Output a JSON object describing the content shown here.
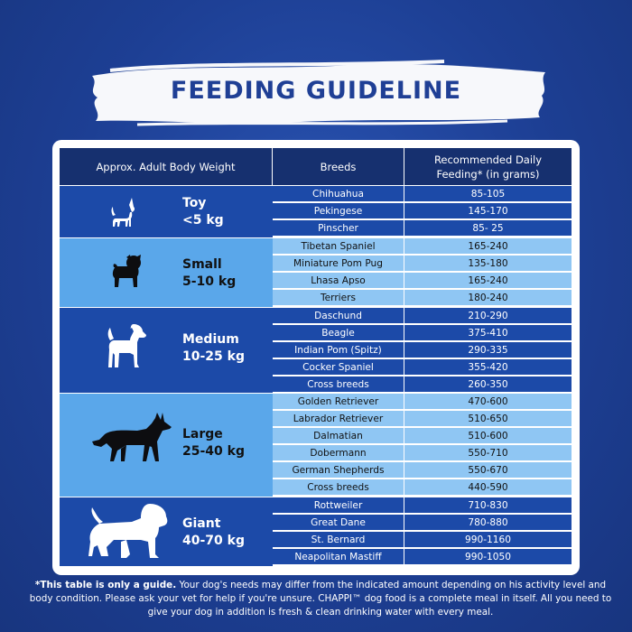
{
  "title": "FEEDING GUIDELINE",
  "table": {
    "headers": {
      "weight": "Approx. Adult Body Weight",
      "breeds": "Breeds",
      "feeding_line1": "Recommended Daily",
      "feeding_line2": "Feeding* (in grams)"
    },
    "groups": [
      {
        "name": "Toy",
        "weight": "<5 kg",
        "icon": "chihuahua-icon",
        "rows": [
          {
            "breed": "Chihuahua",
            "feeding": "85-105"
          },
          {
            "breed": "Pekingese",
            "feeding": "145-170"
          },
          {
            "breed": "Pinscher",
            "feeding": "85- 25"
          }
        ]
      },
      {
        "name": "Small",
        "weight": "5-10 kg",
        "icon": "pug-icon",
        "rows": [
          {
            "breed": "Tibetan Spaniel",
            "feeding": "165-240"
          },
          {
            "breed": "Miniature Pom Pug",
            "feeding": "135-180"
          },
          {
            "breed": "Lhasa Apso",
            "feeding": "165-240"
          },
          {
            "breed": "Terriers",
            "feeding": "180-240"
          }
        ]
      },
      {
        "name": "Medium",
        "weight": "10-25 kg",
        "icon": "beagle-icon",
        "rows": [
          {
            "breed": "Daschund",
            "feeding": "210-290"
          },
          {
            "breed": "Beagle",
            "feeding": "375-410"
          },
          {
            "breed": "Indian Pom (Spitz)",
            "feeding": "290-335"
          },
          {
            "breed": "Cocker Spaniel",
            "feeding": "355-420"
          },
          {
            "breed": "Cross breeds",
            "feeding": "260-350"
          }
        ]
      },
      {
        "name": "Large",
        "weight": "25-40 kg",
        "icon": "german-shepherd-icon",
        "rows": [
          {
            "breed": "Golden Retriever",
            "feeding": "470-600"
          },
          {
            "breed": "Labrador Retriever",
            "feeding": "510-650"
          },
          {
            "breed": "Dalmatian",
            "feeding": "510-600"
          },
          {
            "breed": "Dobermann",
            "feeding": "550-710"
          },
          {
            "breed": "German Shepherds",
            "feeding": "550-670"
          },
          {
            "breed": "Cross breeds",
            "feeding": "440-590"
          }
        ]
      },
      {
        "name": "Giant",
        "weight": "40-70 kg",
        "icon": "saint-bernard-icon",
        "rows": [
          {
            "breed": "Rottweiler",
            "feeding": "710-830"
          },
          {
            "breed": "Great Dane",
            "feeding": "780-880"
          },
          {
            "breed": "St. Bernard",
            "feeding": "990-1160"
          },
          {
            "breed": "Neapolitan Mastiff",
            "feeding": "990-1050"
          }
        ]
      }
    ]
  },
  "footnote": {
    "lead": "*This table is only a guide.",
    "body": " Your dog's needs may differ from the indicated amount depending on his activity level and body condition. Please ask your vet for help if you're unsure. CHAPPI™ dog food is a complete meal in itself. All you need to give your dog in addition is fresh & clean drinking water with every meal."
  },
  "colors": {
    "background": "#1d3f94",
    "header": "#16306f",
    "dark_band": "#1c4aa8",
    "light_band": "#5aa7ea",
    "light_row": "#8fc6f3"
  }
}
